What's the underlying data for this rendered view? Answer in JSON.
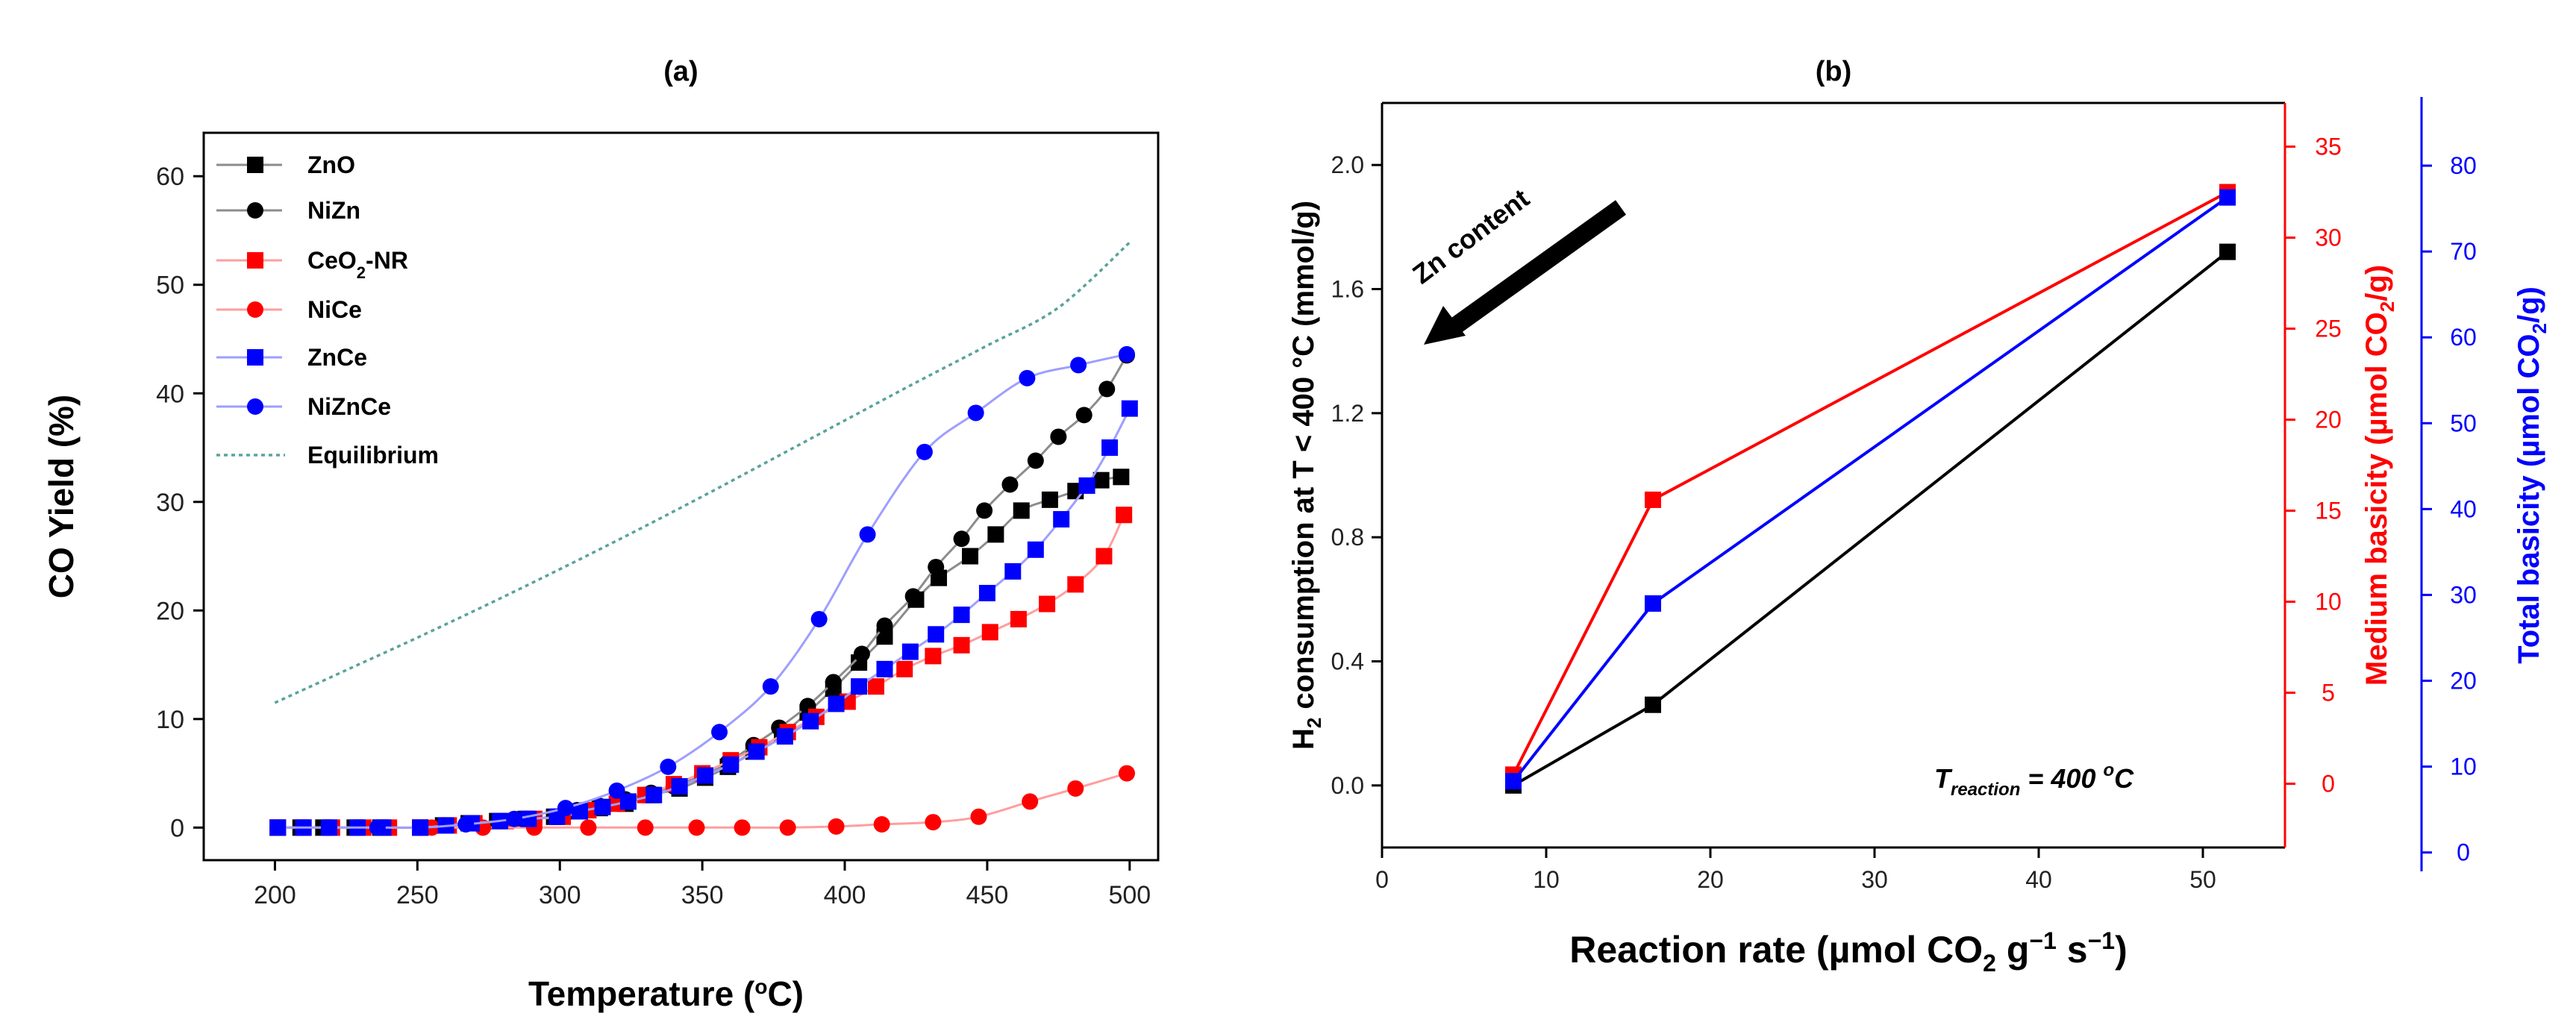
{
  "chart_data": [
    {
      "type": "line",
      "panel_label": "(a)",
      "xlabel": "Temperature (°C)",
      "ylabel": "CO Yield (%)",
      "xlim": [
        175,
        510
      ],
      "ylim": [
        -3,
        64
      ],
      "xticks": [
        200,
        250,
        300,
        350,
        400,
        450,
        500
      ],
      "yticks": [
        0,
        10,
        20,
        30,
        40,
        50,
        60
      ],
      "grid": false,
      "legend_position": "top-left",
      "series": [
        {
          "name": "ZnO",
          "legend_html": "ZnO",
          "color": "#000000",
          "line_color": "#8c8c8c",
          "marker": "square",
          "x": [
            201,
            209,
            217,
            228,
            237,
            251,
            259,
            268,
            278,
            288,
            298,
            306,
            314,
            323,
            332,
            342,
            351,
            359,
            368,
            378,
            387,
            396,
            405,
            414,
            425,
            433,
            444,
            453,
            462,
            472,
            481,
            490,
            497
          ],
          "y": [
            0,
            0,
            0,
            0,
            0,
            0,
            0.2,
            0.4,
            0.6,
            0.8,
            1.0,
            1.5,
            1.8,
            2.2,
            3,
            3.6,
            4.6,
            5.6,
            7,
            8.6,
            10.6,
            12.8,
            15.2,
            17.6,
            21,
            23,
            25,
            27,
            29.2,
            30.2,
            31,
            32,
            32.3
          ]
        },
        {
          "name": "NiZn",
          "legend_html": "NiZn",
          "color": "#000000",
          "line_color": "#8c8c8c",
          "marker": "circle",
          "x": [
            201,
            209,
            218,
            228,
            237,
            251,
            259,
            268,
            278,
            288,
            298,
            306,
            314,
            323,
            332,
            340,
            350,
            359,
            368,
            377,
            387,
            396,
            406,
            414,
            424,
            432,
            441,
            449,
            458,
            467,
            475,
            484,
            492,
            499
          ],
          "y": [
            0,
            0,
            0,
            0,
            0,
            0,
            0.2,
            0.4,
            0.6,
            0.8,
            1.0,
            1.6,
            2.0,
            2.6,
            3.2,
            3.8,
            4.8,
            6,
            7.6,
            9.2,
            11.2,
            13.4,
            16,
            18.6,
            21.3,
            24,
            26.6,
            29.2,
            31.6,
            33.8,
            36,
            38,
            40.4,
            43.5
          ]
        },
        {
          "name": "CeO2-NR",
          "legend_html": "CeO<tspan baseline-shift=\"sub\" font-size=\"22\">2</tspan>-NR",
          "color": "#ff0000",
          "line_color": "#ff9e9e",
          "marker": "square",
          "x": [
            201,
            210,
            220,
            231,
            240,
            251,
            261,
            270,
            281,
            291,
            301,
            310,
            320,
            330,
            340,
            350,
            360,
            370,
            380,
            390,
            401,
            411,
            421,
            431,
            441,
            451,
            461,
            471,
            481,
            491,
            498
          ],
          "y": [
            0,
            0,
            0,
            0,
            0,
            0,
            0.2,
            0.4,
            0.6,
            0.8,
            1.0,
            1.6,
            2.2,
            3,
            4,
            5,
            6.2,
            7.4,
            8.8,
            10.2,
            11.6,
            13,
            14.6,
            15.8,
            16.8,
            18,
            19.2,
            20.6,
            22.4,
            25,
            28.8
          ]
        },
        {
          "name": "NiCe",
          "legend_html": "NiCe",
          "color": "#ff0000",
          "line_color": "#ff9e9e",
          "marker": "circle",
          "x": [
            201,
            219,
            237,
            255,
            273,
            291,
            310,
            330,
            348,
            364,
            380,
            397,
            413,
            431,
            447,
            465,
            481,
            499
          ],
          "y": [
            0,
            0,
            0,
            0,
            0,
            0,
            0,
            0,
            0,
            0,
            0,
            0.1,
            0.3,
            0.5,
            1.0,
            2.4,
            3.6,
            5
          ]
        },
        {
          "name": "ZnCe",
          "legend_html": "ZnCe",
          "color": "#0000ff",
          "line_color": "#9e9eff",
          "marker": "square",
          "x": [
            201,
            210,
            219,
            229,
            238,
            251,
            260,
            269,
            279,
            289,
            299,
            307,
            315,
            324,
            333,
            342,
            351,
            360,
            369,
            379,
            388,
            397,
            405,
            414,
            423,
            432,
            441,
            450,
            459,
            467,
            476,
            485,
            493,
            500
          ],
          "y": [
            0,
            0,
            0,
            0,
            0,
            0,
            0.2,
            0.4,
            0.6,
            0.8,
            1.0,
            1.5,
            1.9,
            2.4,
            3,
            3.8,
            4.8,
            5.8,
            7,
            8.4,
            9.8,
            11.4,
            13,
            14.6,
            16.2,
            17.8,
            19.6,
            21.6,
            23.6,
            25.6,
            28.4,
            31.5,
            35,
            38.6
          ]
        },
        {
          "name": "NiZnCe",
          "legend_html": "NiZnCe",
          "color": "#0000ff",
          "line_color": "#9e9eff",
          "marker": "circle",
          "x": [
            201,
            219,
            236,
            251,
            267,
            284,
            302,
            320,
            338,
            356,
            374,
            391,
            408,
            428,
            446,
            464,
            482,
            499
          ],
          "y": [
            0,
            0,
            0,
            0,
            0.3,
            0.8,
            1.8,
            3.4,
            5.6,
            8.8,
            13,
            19.2,
            27,
            34.6,
            38.2,
            41.4,
            42.6,
            43.6
          ]
        },
        {
          "name": "Equilibrium",
          "legend_html": "Equilibrium",
          "color": "#5aa39a",
          "line_color": "#5aa39a",
          "marker": "none",
          "dashed": true,
          "x": [
            200,
            225,
            250,
            275,
            300,
            325,
            350,
            375,
            400,
            425,
            450,
            475,
            500
          ],
          "y": [
            11.5,
            14.5,
            17.5,
            20.6,
            23.8,
            27.1,
            30.5,
            34.0,
            37.5,
            41.0,
            44.4,
            47.9,
            53.9
          ]
        }
      ]
    },
    {
      "type": "line",
      "panel_label": "(b)",
      "xlabel": "Reaction rate (µmol CO₂ g⁻¹ s⁻¹)",
      "xlim": [
        0,
        55
      ],
      "xticks": [
        0,
        10,
        20,
        30,
        40,
        50
      ],
      "grid": false,
      "annotation": "T reaction = 400 °C",
      "annotation_main": "T",
      "annotation_sub": "reaction",
      "annotation_rest": " = 400 °C",
      "arrow_label": "Zn content",
      "axes": {
        "left": {
          "label": "H₂ consumption at T < 400 °C (mmol/g)",
          "color": "#000000",
          "range": [
            -0.2,
            2.2
          ],
          "ticks": [
            0.0,
            0.4,
            0.8,
            1.2,
            1.6,
            2.0
          ],
          "tick_labels": [
            "0.0",
            "0.4",
            "0.8",
            "1.2",
            "1.6",
            "2.0"
          ]
        },
        "right1": {
          "label": "Medium basicity (µmol CO₂/g)",
          "color": "#ff0000",
          "range": [
            -3.5,
            37.4
          ],
          "ticks": [
            0,
            5,
            10,
            15,
            20,
            25,
            30,
            35
          ]
        },
        "right2": {
          "label": "Total basicity (µmol CO₂/g)",
          "color": "#0000ff",
          "range": [
            -2.2,
            88
          ],
          "ticks": [
            0,
            10,
            20,
            30,
            40,
            50,
            60,
            70,
            80
          ]
        }
      },
      "series": [
        {
          "name": "H2 consumption",
          "axis": "left",
          "color": "#000000",
          "x": [
            8.0,
            16.5,
            51.5
          ],
          "y": [
            0.0,
            0.26,
            1.72
          ]
        },
        {
          "name": "Medium basicity",
          "axis": "right1",
          "color": "#ff0000",
          "x": [
            8.0,
            16.5,
            51.5
          ],
          "y": [
            0.5,
            15.6,
            32.5
          ]
        },
        {
          "name": "Total basicity",
          "axis": "right2",
          "color": "#0000ff",
          "x": [
            8.0,
            16.5,
            51.5
          ],
          "y": [
            8.3,
            29.0,
            76.3
          ]
        }
      ]
    }
  ]
}
